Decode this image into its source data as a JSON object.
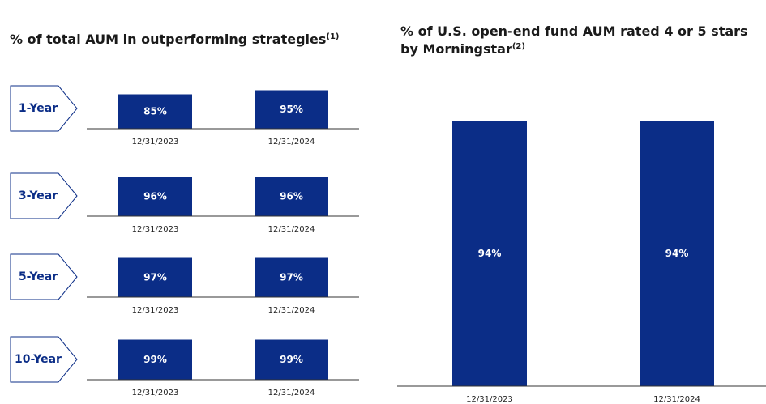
{
  "chart_data": [
    {
      "type": "bar",
      "title": "% of total AUM in outperforming strategies",
      "title_note": "(1)",
      "label": "1-Year",
      "categories": [
        "12/31/2023",
        "12/31/2024"
      ],
      "values": [
        85,
        95
      ],
      "value_labels": [
        "85%",
        "95%"
      ],
      "color": "#0b2d87"
    },
    {
      "type": "bar",
      "label": "3-Year",
      "categories": [
        "12/31/2023",
        "12/31/2024"
      ],
      "values": [
        96,
        96
      ],
      "value_labels": [
        "96%",
        "96%"
      ],
      "color": "#0b2d87"
    },
    {
      "type": "bar",
      "label": "5-Year",
      "categories": [
        "12/31/2023",
        "12/31/2024"
      ],
      "values": [
        97,
        97
      ],
      "value_labels": [
        "97%",
        "97%"
      ],
      "color": "#0b2d87"
    },
    {
      "type": "bar",
      "label": "10-Year",
      "categories": [
        "12/31/2023",
        "12/31/2024"
      ],
      "values": [
        99,
        99
      ],
      "value_labels": [
        "99%",
        "99%"
      ],
      "color": "#0b2d87"
    },
    {
      "type": "bar",
      "title": "% of U.S. open-end fund AUM rated 4 or 5 stars by Morningstar",
      "title_note": "(2)",
      "categories": [
        "12/31/2023",
        "12/31/2024"
      ],
      "values": [
        94,
        94
      ],
      "value_labels": [
        "94%",
        "94%"
      ],
      "color": "#0b2d87"
    }
  ]
}
